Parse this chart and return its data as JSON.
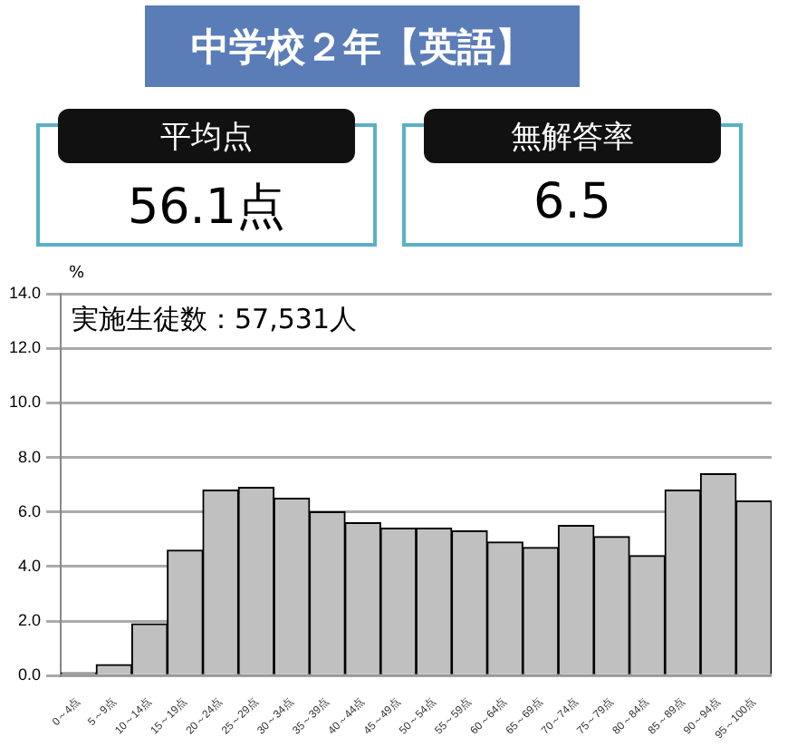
{
  "chart_data": {
    "type": "bar",
    "title": "中学校２年【英語】",
    "ylabel": "%",
    "annotations": [
      "平均点",
      "56.1点",
      "無解答率",
      "6.5",
      "実施生徒数：57,531人"
    ],
    "categories": [
      "0～4点",
      "5～9点",
      "10～14点",
      "15～19点",
      "20～24点",
      "25～29点",
      "30～34点",
      "35～39点",
      "40～44点",
      "45～49点",
      "50～54点",
      "55～59点",
      "60～64点",
      "65～69点",
      "70～74点",
      "75～79点",
      "80～84点",
      "85～89点",
      "90～94点",
      "95～100点"
    ],
    "values": [
      0.1,
      0.4,
      1.9,
      4.6,
      6.8,
      6.9,
      6.5,
      6.0,
      5.6,
      5.4,
      5.4,
      5.3,
      4.9,
      4.7,
      5.5,
      5.1,
      4.4,
      6.8,
      7.4,
      6.4
    ],
    "color": "#c0c0c0",
    "ylim": [
      0,
      14
    ],
    "yticks": [
      {
        "value": 0,
        "label": "0.0"
      },
      {
        "value": 2,
        "label": "2.0"
      },
      {
        "value": 4,
        "label": "4.0"
      },
      {
        "value": 6,
        "label": "6.0"
      },
      {
        "value": 8,
        "label": "8.0"
      },
      {
        "value": 10,
        "label": "10.0"
      },
      {
        "value": 12,
        "label": "12.0"
      },
      {
        "value": 14,
        "label": "14.0"
      }
    ],
    "grid": "y",
    "legend": false
  }
}
